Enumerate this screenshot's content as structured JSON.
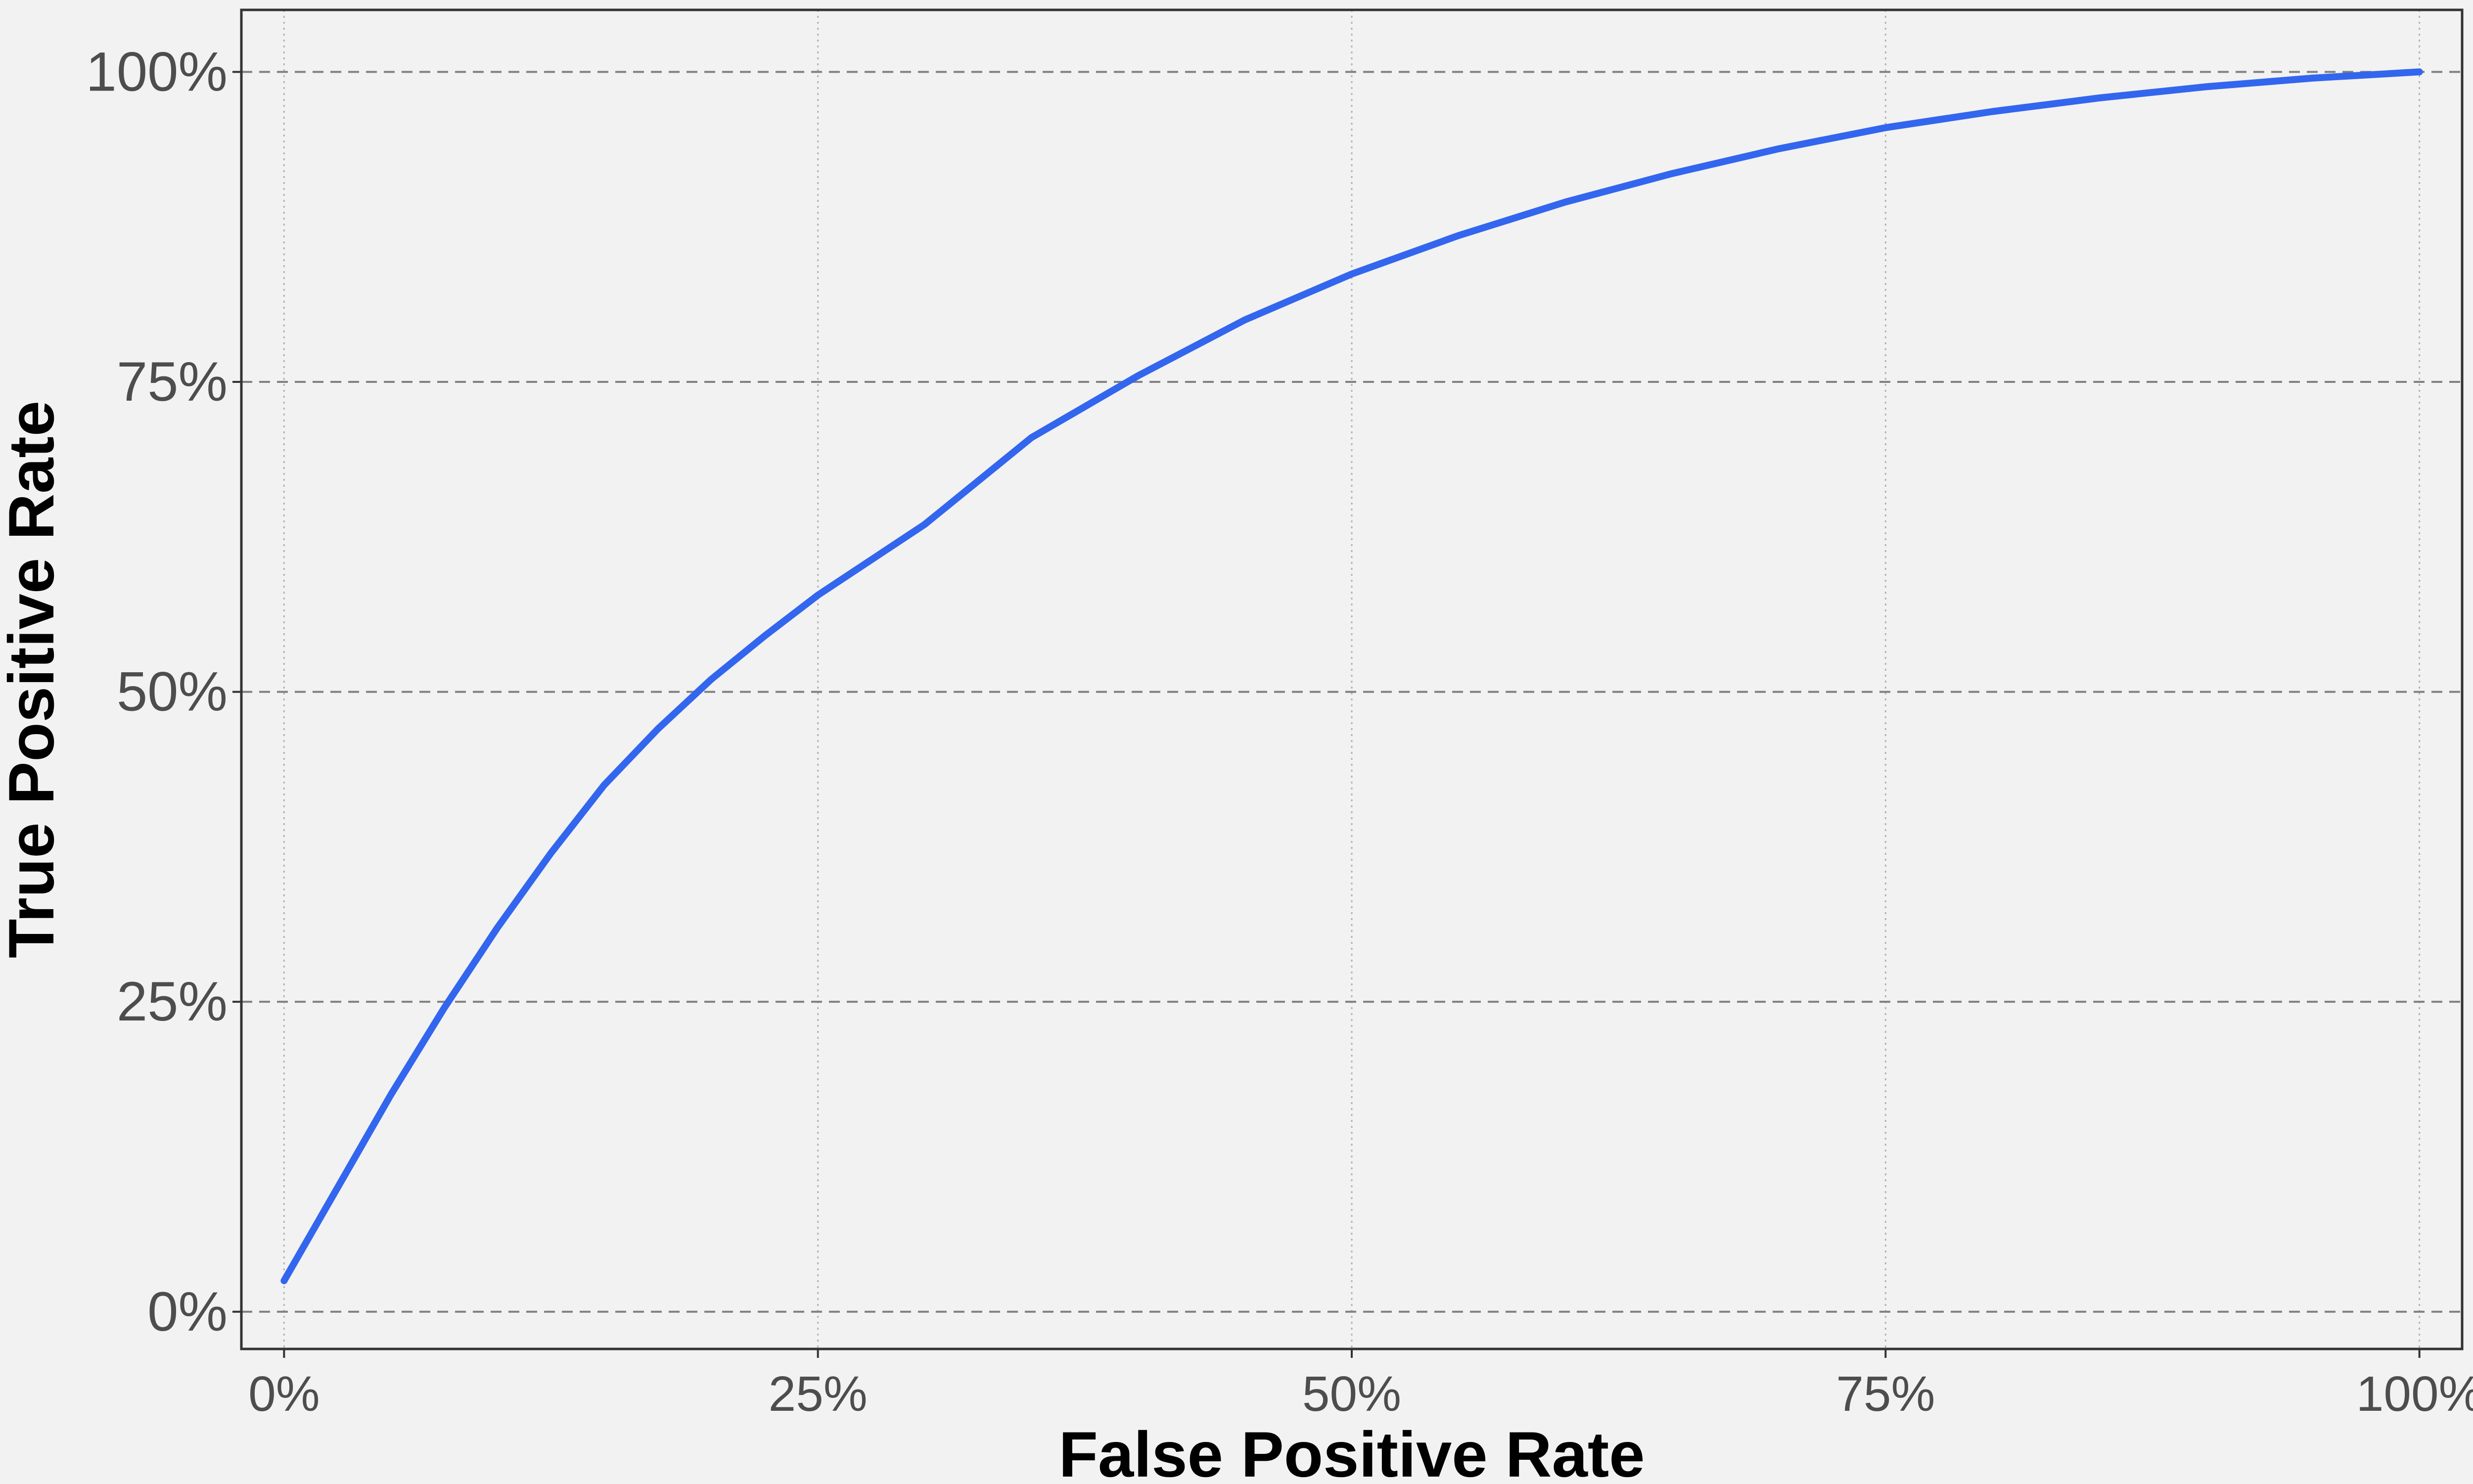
{
  "chart_data": {
    "type": "line",
    "xlabel": "False Positive Rate",
    "ylabel": "True Positive Rate",
    "xlim": [
      -0.02,
      1.02
    ],
    "ylim": [
      -0.03,
      1.05
    ],
    "x_ticks": [
      {
        "value": 0,
        "label": "0%"
      },
      {
        "value": 0.25,
        "label": "25%"
      },
      {
        "value": 0.5,
        "label": "50%"
      },
      {
        "value": 0.75,
        "label": "75%"
      },
      {
        "value": 1,
        "label": "100%"
      }
    ],
    "y_ticks": [
      {
        "value": 0,
        "label": "0%"
      },
      {
        "value": 0.25,
        "label": "25%"
      },
      {
        "value": 0.5,
        "label": "50%"
      },
      {
        "value": 0.75,
        "label": "75%"
      },
      {
        "value": 1,
        "label": "100%"
      }
    ],
    "grid": true,
    "legend": "none",
    "series": [
      {
        "color": "#3366ee",
        "x": [
          0.0,
          0.025,
          0.05,
          0.075,
          0.1,
          0.125,
          0.15,
          0.175,
          0.2,
          0.225,
          0.25,
          0.3,
          0.35,
          0.4,
          0.45,
          0.5,
          0.55,
          0.6,
          0.65,
          0.7,
          0.75,
          0.8,
          0.85,
          0.9,
          0.95,
          1.0
        ],
        "y": [
          0.025,
          0.1,
          0.175,
          0.245,
          0.31,
          0.37,
          0.425,
          0.47,
          0.51,
          0.545,
          0.578,
          0.635,
          0.705,
          0.755,
          0.8,
          0.837,
          0.868,
          0.895,
          0.918,
          0.938,
          0.955,
          0.968,
          0.979,
          0.988,
          0.995,
          1.0
        ]
      }
    ]
  }
}
